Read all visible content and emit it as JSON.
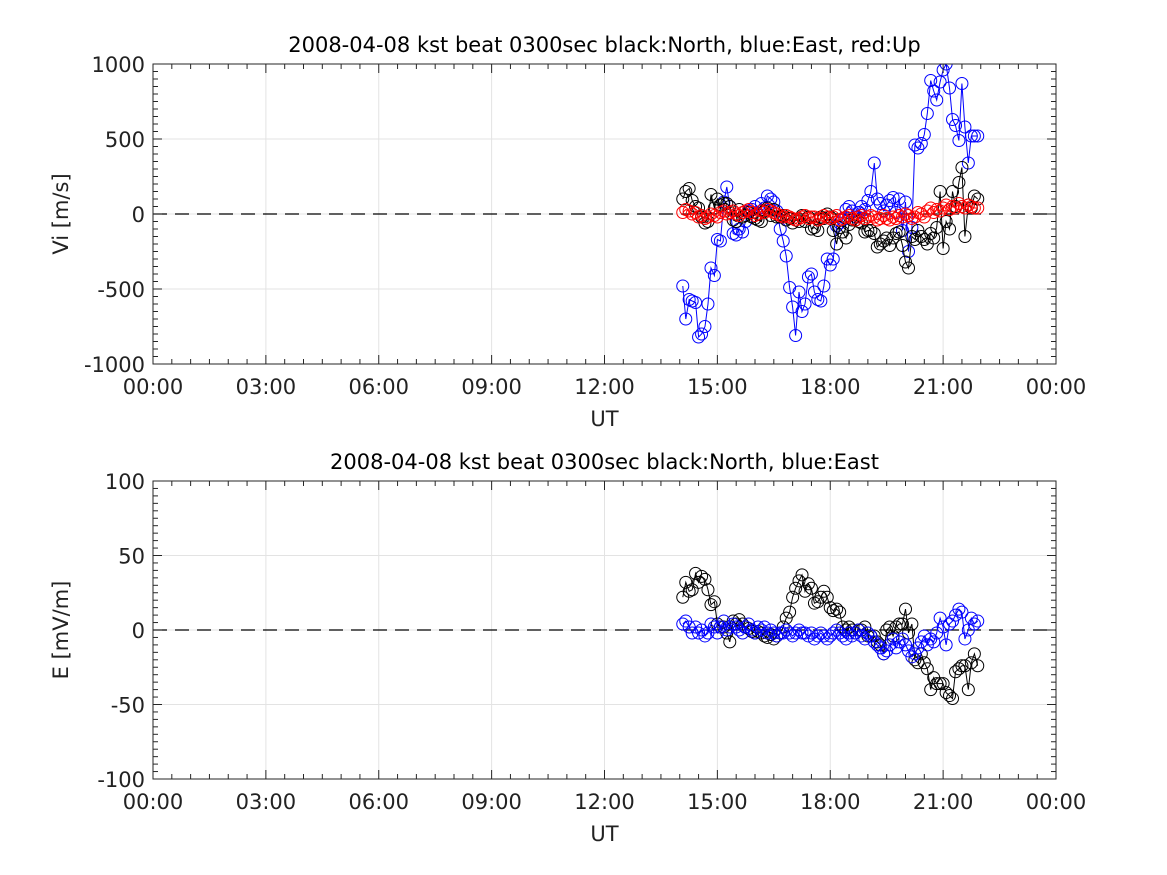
{
  "chart_data": [
    {
      "type": "line",
      "title": "2008-04-08 kst beat 0300sec black:North, blue:East, red:Up",
      "xlabel": "UT",
      "ylabel": "Vi [m/s]",
      "xlim": [
        0,
        24
      ],
      "ylim": [
        -1000,
        1000
      ],
      "x_ticks": [
        0,
        3,
        6,
        9,
        12,
        15,
        18,
        21,
        24
      ],
      "x_tick_labels": [
        "00:00",
        "03:00",
        "06:00",
        "09:00",
        "12:00",
        "15:00",
        "18:00",
        "21:00",
        "00:00"
      ],
      "y_ticks": [
        1000,
        500,
        0,
        -500,
        -1000
      ],
      "y_tick_labels": [
        "1000",
        "500",
        "0",
        "-500",
        "-1000"
      ],
      "grid": true,
      "zero_line": "dashed",
      "series": [
        {
          "color": "#0000ff",
          "marker": "circle",
          "x": [
            14.08,
            14.16,
            14.25,
            14.33,
            14.42,
            14.5,
            14.58,
            14.67,
            14.75,
            14.83,
            14.92,
            15.0,
            15.08,
            15.17,
            15.25,
            15.33,
            15.42,
            15.5,
            15.58,
            15.67,
            15.75,
            15.83,
            15.92,
            16.0,
            16.08,
            16.17,
            16.25,
            16.33,
            16.42,
            16.5,
            16.58,
            16.67,
            16.75,
            16.83,
            16.92,
            17.0,
            17.08,
            17.17,
            17.25,
            17.33,
            17.42,
            17.5,
            17.58,
            17.67,
            17.75,
            17.83,
            17.92,
            18.0,
            18.08,
            18.17,
            18.25,
            18.33,
            18.42,
            18.5,
            18.58,
            18.67,
            18.75,
            18.83,
            18.92,
            19.0,
            19.08,
            19.17,
            19.25,
            19.33,
            19.42,
            19.5,
            19.58,
            19.67,
            19.75,
            19.83,
            19.92,
            20.0,
            20.08,
            20.17,
            20.25,
            20.33,
            20.42,
            20.5,
            20.58,
            20.67,
            20.75,
            20.83,
            20.92,
            21.0,
            21.08,
            21.17,
            21.25,
            21.33,
            21.42,
            21.5,
            21.58,
            21.67,
            21.75,
            21.83,
            21.92
          ],
          "y": [
            -480,
            -700,
            -570,
            -580,
            -590,
            -820,
            -800,
            -750,
            -600,
            -360,
            -410,
            -170,
            -180,
            80,
            180,
            50,
            -130,
            -140,
            -100,
            -120,
            -50,
            20,
            30,
            50,
            0,
            70,
            40,
            120,
            100,
            80,
            20,
            -100,
            -180,
            -280,
            -490,
            -620,
            -810,
            -520,
            -650,
            -600,
            -420,
            -400,
            -520,
            -570,
            -580,
            -480,
            -300,
            -340,
            -300,
            -80,
            -60,
            -40,
            30,
            50,
            20,
            -20,
            10,
            50,
            30,
            90,
            150,
            340,
            100,
            70,
            20,
            60,
            90,
            110,
            10,
            100,
            -110,
            80,
            -250,
            -90,
            460,
            440,
            470,
            530,
            670,
            890,
            820,
            760,
            880,
            960,
            1000,
            840,
            630,
            590,
            490,
            870,
            580,
            340,
            520,
            520,
            520
          ]
        },
        {
          "color": "#000000",
          "marker": "circle",
          "x": [
            14.08,
            14.16,
            14.25,
            14.33,
            14.42,
            14.5,
            14.58,
            14.67,
            14.75,
            14.83,
            14.92,
            15.0,
            15.08,
            15.17,
            15.25,
            15.33,
            15.42,
            15.5,
            15.58,
            15.67,
            15.75,
            15.83,
            15.92,
            16.0,
            16.08,
            16.17,
            16.25,
            16.33,
            16.42,
            16.5,
            16.58,
            16.67,
            16.75,
            16.83,
            16.92,
            17.0,
            17.08,
            17.17,
            17.25,
            17.33,
            17.42,
            17.5,
            17.58,
            17.67,
            17.75,
            17.83,
            17.92,
            18.0,
            18.08,
            18.17,
            18.25,
            18.33,
            18.42,
            18.5,
            18.58,
            18.67,
            18.75,
            18.83,
            18.92,
            19.0,
            19.08,
            19.17,
            19.25,
            19.33,
            19.42,
            19.5,
            19.58,
            19.67,
            19.75,
            19.83,
            19.92,
            20.0,
            20.08,
            20.17,
            20.25,
            20.33,
            20.42,
            20.5,
            20.58,
            20.67,
            20.75,
            20.83,
            20.92,
            21.0,
            21.08,
            21.17,
            21.25,
            21.33,
            21.42,
            21.5,
            21.58,
            21.67,
            21.75,
            21.83,
            21.92
          ],
          "y": [
            100,
            150,
            170,
            90,
            50,
            40,
            -20,
            -60,
            -50,
            130,
            40,
            100,
            60,
            70,
            70,
            50,
            -40,
            -50,
            30,
            -20,
            -10,
            10,
            -20,
            -30,
            -40,
            -50,
            20,
            40,
            -10,
            30,
            -20,
            -20,
            -10,
            -40,
            -30,
            -60,
            -40,
            -50,
            -10,
            -50,
            -20,
            -100,
            -90,
            -110,
            -20,
            -30,
            0,
            -20,
            -110,
            -200,
            -90,
            -120,
            -160,
            -70,
            -40,
            -40,
            -50,
            -60,
            -120,
            -110,
            -110,
            -130,
            -220,
            -200,
            -180,
            -160,
            -210,
            -160,
            -130,
            -120,
            -210,
            -320,
            -360,
            -150,
            -170,
            -110,
            -150,
            -170,
            -200,
            -130,
            -160,
            -90,
            150,
            -230,
            -50,
            -100,
            150,
            50,
            210,
            310,
            -150,
            60,
            40,
            120,
            100
          ]
        },
        {
          "color": "#ff0000",
          "marker": "circle",
          "x": [
            14.08,
            14.16,
            14.25,
            14.33,
            14.42,
            14.5,
            14.58,
            14.67,
            14.75,
            14.83,
            14.92,
            15.0,
            15.08,
            15.17,
            15.25,
            15.33,
            15.42,
            15.5,
            15.58,
            15.67,
            15.75,
            15.83,
            15.92,
            16.0,
            16.08,
            16.17,
            16.25,
            16.33,
            16.42,
            16.5,
            16.58,
            16.67,
            16.75,
            16.83,
            16.92,
            17.0,
            17.08,
            17.17,
            17.25,
            17.33,
            17.42,
            17.5,
            17.58,
            17.67,
            17.75,
            17.83,
            17.92,
            18.0,
            18.08,
            18.17,
            18.25,
            18.33,
            18.42,
            18.5,
            18.58,
            18.67,
            18.75,
            18.83,
            18.92,
            19.0,
            19.08,
            19.17,
            19.25,
            19.33,
            19.42,
            19.5,
            19.58,
            19.67,
            19.75,
            19.83,
            19.92,
            20.0,
            20.08,
            20.17,
            20.25,
            20.33,
            20.42,
            20.5,
            20.58,
            20.67,
            20.75,
            20.83,
            20.92,
            21.0,
            21.08,
            21.17,
            21.25,
            21.33,
            21.42,
            21.5,
            21.58,
            21.67,
            21.75,
            21.83,
            21.92
          ],
          "y": [
            10,
            30,
            20,
            0,
            10,
            -20,
            -10,
            -30,
            -20,
            0,
            -10,
            -20,
            10,
            20,
            0,
            10,
            20,
            0,
            -10,
            10,
            20,
            30,
            10,
            -10,
            0,
            20,
            10,
            30,
            20,
            10,
            0,
            -10,
            -20,
            -10,
            -20,
            -30,
            -40,
            -30,
            -20,
            -10,
            -30,
            -20,
            -20,
            -40,
            -30,
            -10,
            -20,
            -30,
            -20,
            -10,
            -40,
            -30,
            -20,
            -10,
            -30,
            -40,
            -20,
            -10,
            -30,
            -20,
            -10,
            -20,
            -40,
            -30,
            -10,
            -30,
            -40,
            -20,
            -30,
            -10,
            -20,
            0,
            -10,
            -30,
            -20,
            10,
            0,
            -20,
            20,
            40,
            10,
            30,
            20,
            40,
            60,
            30,
            50,
            40,
            70,
            50,
            40,
            60,
            50,
            40,
            40
          ]
        }
      ]
    },
    {
      "type": "line",
      "title": "2008-04-08 kst beat 0300sec black:North, blue:East",
      "xlabel": "UT",
      "ylabel": "E [mV/m]",
      "xlim": [
        0,
        24
      ],
      "ylim": [
        -100,
        100
      ],
      "x_ticks": [
        0,
        3,
        6,
        9,
        12,
        15,
        18,
        21,
        24
      ],
      "x_tick_labels": [
        "00:00",
        "03:00",
        "06:00",
        "09:00",
        "12:00",
        "15:00",
        "18:00",
        "21:00",
        "00:00"
      ],
      "y_ticks": [
        100,
        50,
        0,
        -50,
        -100
      ],
      "y_tick_labels": [
        "100",
        "50",
        "0",
        "-50",
        "-100"
      ],
      "grid": true,
      "zero_line": "dashed",
      "series": [
        {
          "color": "#000000",
          "marker": "circle",
          "x": [
            14.08,
            14.16,
            14.25,
            14.33,
            14.42,
            14.5,
            14.58,
            14.67,
            14.75,
            14.83,
            14.92,
            15.0,
            15.08,
            15.17,
            15.25,
            15.33,
            15.42,
            15.5,
            15.58,
            15.67,
            15.75,
            15.83,
            15.92,
            16.0,
            16.08,
            16.17,
            16.25,
            16.33,
            16.42,
            16.5,
            16.58,
            16.67,
            16.75,
            16.83,
            16.92,
            17.0,
            17.08,
            17.17,
            17.25,
            17.33,
            17.42,
            17.5,
            17.58,
            17.67,
            17.75,
            17.83,
            17.92,
            18.0,
            18.08,
            18.17,
            18.25,
            18.33,
            18.42,
            18.5,
            18.58,
            18.67,
            18.75,
            18.83,
            18.92,
            19.0,
            19.08,
            19.17,
            19.25,
            19.33,
            19.42,
            19.5,
            19.58,
            19.67,
            19.75,
            19.83,
            19.92,
            20.0,
            20.08,
            20.17,
            20.25,
            20.33,
            20.42,
            20.5,
            20.58,
            20.67,
            20.75,
            20.83,
            20.92,
            21.0,
            21.08,
            21.17,
            21.25,
            21.33,
            21.42,
            21.5,
            21.58,
            21.67,
            21.75,
            21.83,
            21.92
          ],
          "y": [
            22,
            32,
            26,
            27,
            38,
            32,
            36,
            34,
            27,
            17,
            19,
            4,
            2,
            2,
            -2,
            -8,
            6,
            4,
            7,
            4,
            2,
            1,
            -1,
            -2,
            -1,
            -2,
            -4,
            -5,
            -3,
            -6,
            -4,
            -2,
            2,
            8,
            12,
            22,
            28,
            33,
            37,
            26,
            31,
            28,
            18,
            19,
            22,
            26,
            22,
            15,
            13,
            14,
            12,
            2,
            0,
            2,
            0,
            -2,
            0,
            0,
            2,
            -4,
            -4,
            -4,
            -8,
            -10,
            -16,
            0,
            2,
            -4,
            2,
            4,
            4,
            14,
            -2,
            4,
            -20,
            -22,
            -16,
            -22,
            -26,
            -40,
            -32,
            -36,
            -36,
            -36,
            -42,
            -44,
            -46,
            -28,
            -26,
            -24,
            -24,
            -40,
            -22,
            -16,
            -24
          ]
        },
        {
          "color": "#0000ff",
          "marker": "circle",
          "x": [
            14.08,
            14.16,
            14.25,
            14.33,
            14.42,
            14.5,
            14.58,
            14.67,
            14.75,
            14.83,
            14.92,
            15.0,
            15.08,
            15.17,
            15.25,
            15.33,
            15.42,
            15.5,
            15.58,
            15.67,
            15.75,
            15.83,
            15.92,
            16.0,
            16.08,
            16.17,
            16.25,
            16.33,
            16.42,
            16.5,
            16.58,
            16.67,
            16.75,
            16.83,
            16.92,
            17.0,
            17.08,
            17.17,
            17.25,
            17.33,
            17.42,
            17.5,
            17.58,
            17.67,
            17.75,
            17.83,
            17.92,
            18.0,
            18.08,
            18.17,
            18.25,
            18.33,
            18.42,
            18.5,
            18.58,
            18.67,
            18.75,
            18.83,
            18.92,
            19.0,
            19.08,
            19.17,
            19.25,
            19.33,
            19.42,
            19.5,
            19.58,
            19.67,
            19.75,
            19.83,
            19.92,
            20.0,
            20.08,
            20.17,
            20.25,
            20.33,
            20.42,
            20.5,
            20.58,
            20.67,
            20.75,
            20.83,
            20.92,
            21.0,
            21.08,
            21.17,
            21.25,
            21.33,
            21.42,
            21.5,
            21.58,
            21.67,
            21.75,
            21.83,
            21.92
          ],
          "y": [
            4,
            6,
            2,
            -2,
            2,
            -2,
            0,
            -4,
            -2,
            4,
            2,
            -2,
            2,
            6,
            0,
            2,
            4,
            2,
            0,
            -2,
            2,
            4,
            0,
            -2,
            2,
            0,
            2,
            -2,
            0,
            -2,
            -4,
            -2,
            -2,
            0,
            -2,
            -4,
            -2,
            0,
            -2,
            -2,
            -4,
            -2,
            -6,
            -4,
            -2,
            -4,
            -6,
            -4,
            -2,
            0,
            -2,
            -4,
            -6,
            -2,
            -4,
            -2,
            0,
            -4,
            -6,
            -2,
            -4,
            -8,
            -10,
            -12,
            -16,
            -14,
            -10,
            -6,
            -12,
            -8,
            -6,
            -10,
            -14,
            -18,
            -16,
            -12,
            -8,
            -4,
            -10,
            -6,
            -8,
            -2,
            8,
            2,
            -10,
            4,
            6,
            10,
            14,
            12,
            -6,
            0,
            8,
            4,
            6
          ]
        }
      ]
    }
  ]
}
